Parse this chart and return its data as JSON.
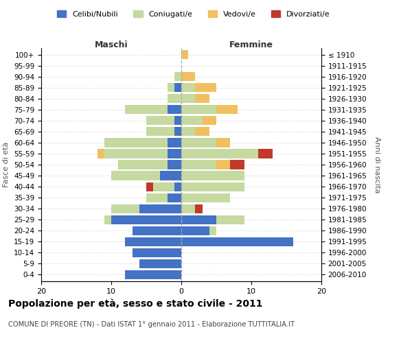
{
  "age_groups": [
    "0-4",
    "5-9",
    "10-14",
    "15-19",
    "20-24",
    "25-29",
    "30-34",
    "35-39",
    "40-44",
    "45-49",
    "50-54",
    "55-59",
    "60-64",
    "65-69",
    "70-74",
    "75-79",
    "80-84",
    "85-89",
    "90-94",
    "95-99",
    "100+"
  ],
  "birth_years": [
    "2006-2010",
    "2001-2005",
    "1996-2000",
    "1991-1995",
    "1986-1990",
    "1981-1985",
    "1976-1980",
    "1971-1975",
    "1966-1970",
    "1961-1965",
    "1956-1960",
    "1951-1955",
    "1946-1950",
    "1941-1945",
    "1936-1940",
    "1931-1935",
    "1926-1930",
    "1921-1925",
    "1916-1920",
    "1911-1915",
    "≤ 1910"
  ],
  "colors": {
    "celibe": "#4472c4",
    "coniugato": "#c5d9a0",
    "vedovo": "#f0c060",
    "divorziato": "#c0392b"
  },
  "maschi": {
    "celibe": [
      8,
      6,
      7,
      8,
      7,
      10,
      6,
      2,
      1,
      3,
      2,
      2,
      2,
      1,
      1,
      2,
      0,
      1,
      0,
      0,
      0
    ],
    "coniugato": [
      0,
      0,
      0,
      0,
      0,
      1,
      4,
      3,
      3,
      7,
      7,
      9,
      9,
      4,
      4,
      6,
      2,
      1,
      1,
      0,
      0
    ],
    "vedovo": [
      0,
      0,
      0,
      0,
      0,
      0,
      0,
      0,
      0,
      0,
      0,
      1,
      0,
      0,
      0,
      0,
      0,
      0,
      0,
      0,
      0
    ],
    "divorziato": [
      0,
      0,
      0,
      0,
      0,
      0,
      0,
      0,
      1,
      0,
      0,
      0,
      0,
      0,
      0,
      0,
      0,
      0,
      0,
      0,
      0
    ]
  },
  "femmine": {
    "nubile": [
      0,
      0,
      0,
      16,
      4,
      5,
      0,
      0,
      0,
      0,
      0,
      0,
      0,
      0,
      0,
      0,
      0,
      0,
      0,
      0,
      0
    ],
    "coniugata": [
      0,
      0,
      0,
      0,
      1,
      4,
      2,
      7,
      9,
      9,
      5,
      11,
      5,
      2,
      3,
      5,
      2,
      2,
      0,
      0,
      0
    ],
    "vedova": [
      0,
      0,
      0,
      0,
      0,
      0,
      0,
      0,
      0,
      0,
      2,
      0,
      2,
      2,
      2,
      3,
      2,
      3,
      2,
      0,
      1
    ],
    "divorziata": [
      0,
      0,
      0,
      0,
      0,
      0,
      1,
      0,
      0,
      0,
      2,
      2,
      0,
      0,
      0,
      0,
      0,
      0,
      0,
      0,
      0
    ]
  },
  "xlim": 20,
  "title": "Popolazione per età, sesso e stato civile - 2011",
  "subtitle": "COMUNE DI PREORE (TN) - Dati ISTAT 1° gennaio 2011 - Elaborazione TUTTITALIA.IT",
  "xlabel_left": "Maschi",
  "xlabel_right": "Femmine",
  "ylabel": "Fasce di età",
  "ylabel_right": "Anni di nascita",
  "legend_labels": [
    "Celibi/Nubili",
    "Coniugati/e",
    "Vedovi/e",
    "Divorziati/e"
  ],
  "background_color": "#ffffff",
  "grid_color": "#cccccc"
}
